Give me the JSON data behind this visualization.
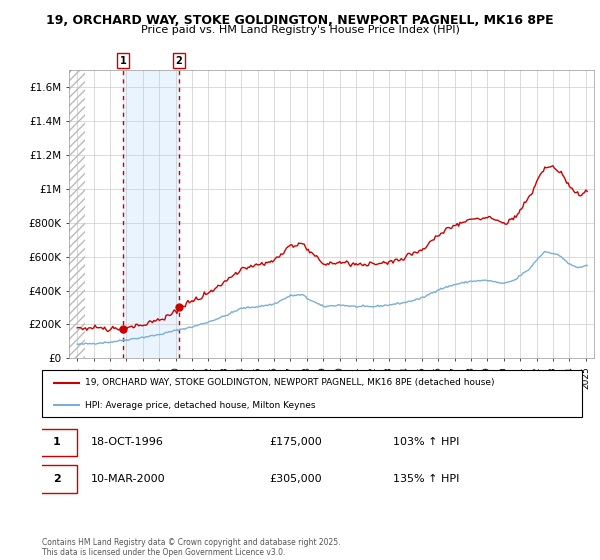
{
  "title_line1": "19, ORCHARD WAY, STOKE GOLDINGTON, NEWPORT PAGNELL, MK16 8PE",
  "title_line2": "Price paid vs. HM Land Registry's House Price Index (HPI)",
  "legend_line1": "19, ORCHARD WAY, STOKE GOLDINGTON, NEWPORT PAGNELL, MK16 8PE (detached house)",
  "legend_line2": "HPI: Average price, detached house, Milton Keynes",
  "purchase1_price": 175000,
  "purchase1_year": 1996.789,
  "purchase2_price": 305000,
  "purchase2_year": 2000.19,
  "footer": "Contains HM Land Registry data © Crown copyright and database right 2025.\nThis data is licensed under the Open Government Licence v3.0.",
  "property_color": "#cc0000",
  "hpi_color": "#7bafd4",
  "ylim": [
    0,
    1700000
  ],
  "yticks": [
    0,
    200000,
    400000,
    600000,
    800000,
    1000000,
    1200000,
    1400000,
    1600000
  ],
  "ytick_labels": [
    "£0",
    "£200K",
    "£400K",
    "£600K",
    "£800K",
    "£1M",
    "£1.2M",
    "£1.4M",
    "£1.6M"
  ],
  "xlim_left": 1993.5,
  "xlim_right": 2025.5,
  "hatch_end": 1994.5
}
